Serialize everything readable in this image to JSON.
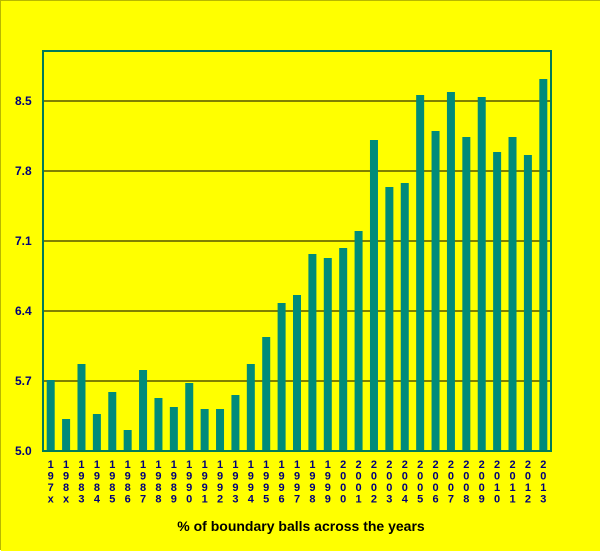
{
  "chart_data": {
    "type": "bar",
    "xlabel": "% of boundary balls across the years",
    "ylabel": "",
    "ylim": [
      5.0,
      9.0
    ],
    "yticks": [
      "5.0",
      "5.7",
      "6.4",
      "7.1",
      "7.8",
      "8.5"
    ],
    "grid": true,
    "colors": {
      "background": "#ffff00",
      "bar": "#008b7a",
      "axis": "#007a5a",
      "grid": "#000000",
      "ticklabel": "#00007a"
    },
    "categories": [
      "197x",
      "198x",
      "1983",
      "1984",
      "1985",
      "1986",
      "1987",
      "1988",
      "1989",
      "1990",
      "1991",
      "1992",
      "1993",
      "1994",
      "1995",
      "1996",
      "1997",
      "1998",
      "1999",
      "2000",
      "2001",
      "2002",
      "2003",
      "2004",
      "2005",
      "2006",
      "2007",
      "2008",
      "2009",
      "2010",
      "2011",
      "2012",
      "2013"
    ],
    "values": [
      5.71,
      5.32,
      5.87,
      5.37,
      5.59,
      5.21,
      5.81,
      5.53,
      5.44,
      5.68,
      5.42,
      5.42,
      5.56,
      5.87,
      6.14,
      6.48,
      6.56,
      6.97,
      6.93,
      7.03,
      7.2,
      8.11,
      7.64,
      7.68,
      8.56,
      8.2,
      8.59,
      8.14,
      8.54,
      7.99,
      8.14,
      7.96,
      8.72
    ]
  }
}
